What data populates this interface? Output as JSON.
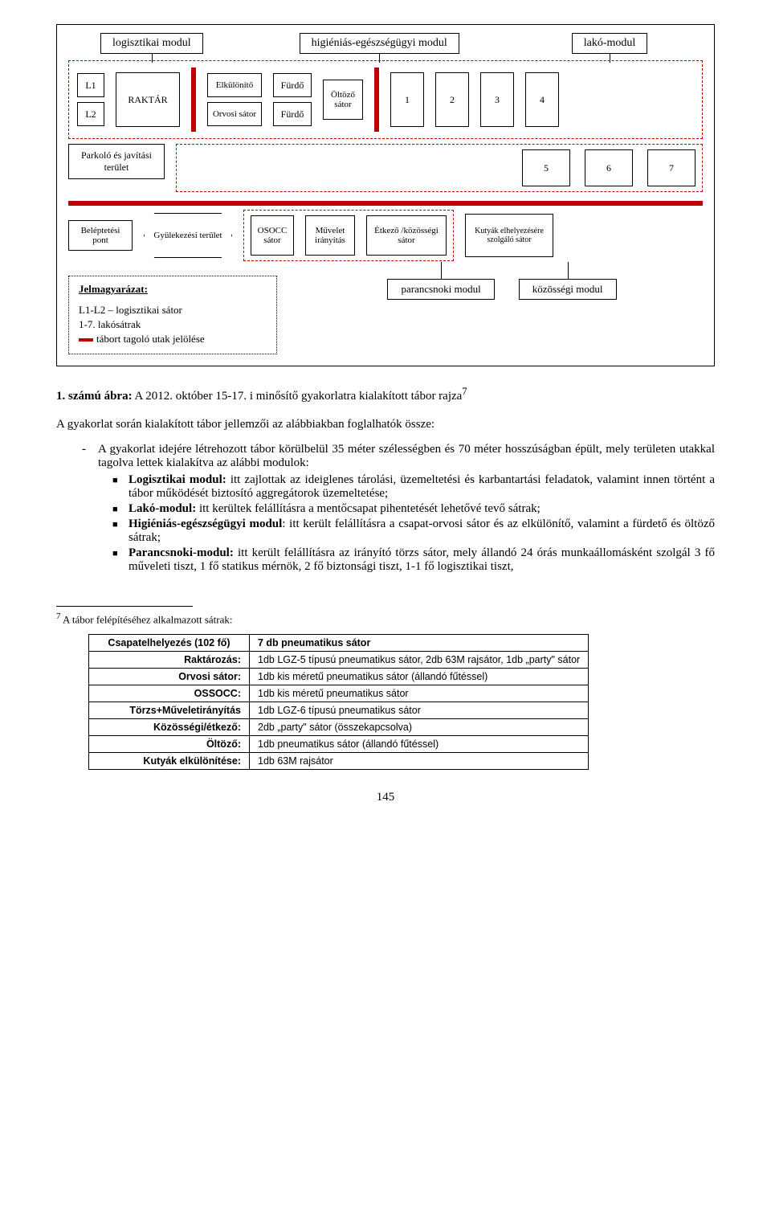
{
  "diagram": {
    "top_labels": {
      "log": "logisztikai modul",
      "hig": "higiéniás-egészségügyi modul",
      "lako": "lakó-modul"
    },
    "row1": {
      "L1": "L1",
      "L2": "L2",
      "raktar": "RAKTÁR",
      "elkulonito": "Elkülönítő",
      "orvosi": "Orvosi sátor",
      "furdo": "Fürdő",
      "oltozo": "Öltöző sátor",
      "n1": "1",
      "n2": "2",
      "n3": "3",
      "n4": "4"
    },
    "row2": {
      "parkolo": "Parkoló és javítási terület",
      "n5": "5",
      "n6": "6",
      "n7": "7"
    },
    "row3": {
      "belep": "Beléptetési pont",
      "gyulek": "Gyülekezési terület",
      "osocc": "OSOCC sátor",
      "muvelet": "Művelet irányítás",
      "etkezo": "Étkező /közösségi sátor",
      "kutyak": "Kutyák elhelyezésére szolgáló sátor"
    },
    "row4": {
      "parancs": "parancsnoki modul",
      "kozoss": "közösségi modul"
    },
    "legend": {
      "title": "Jelmagyarázat:",
      "l1l2": "L1-L2 – logisztikai sátor",
      "lako": "1-7. lakósátrak",
      "utak": "tábort tagoló utak jelölése"
    }
  },
  "caption_bold": "1. számú ábra:",
  "caption_rest": " A 2012. október 15-17. i minősítő gyakorlatra kialakított tábor rajza",
  "caption_sup": "7",
  "intro": "A gyakorlat során kialakított tábor jellemzői az alábbiakban foglalhatók össze:",
  "dash1_lead": "A gyakorlat idejére létrehozott tábor körülbelül 35 méter szélességben és 70 méter hosszúságban épült, mely területen utakkal tagolva lettek kialakítva az alábbi modulok:",
  "sq": {
    "log_b": "Logisztikai modul:",
    "log_t": " itt zajlottak az ideiglenes tárolási, üzemeltetési és karbantartási feladatok, valamint innen történt a tábor működését biztosító aggregátorok üzemeltetése;",
    "lako_b": "Lakó-modul:",
    "lako_t": " itt kerültek felállításra a mentőcsapat pihentetését lehetővé tevő sátrak;",
    "hig_b": "Higiéniás-egészségügyi modul",
    "hig_t": ": itt került felállításra a csapat-orvosi sátor és az elkülönítő, valamint a fürdető és öltöző sátrak;",
    "par_b": "Parancsnoki-modul:",
    "par_t": " itt került felállításra az irányító törzs sátor, mely állandó 24 órás munkaállomásként szolgál 3 fő műveleti tiszt, 1 fő statikus mérnök, 2 fő biztonsági tiszt, 1-1 fő logisztikai tiszt,"
  },
  "footnote_lead": "7",
  "footnote_text": " A tábor felépítéséhez alkalmazott sátrak:",
  "table": {
    "rows": [
      [
        "Csapatelhelyezés (102 fő)",
        "7 db pneumatikus sátor"
      ],
      [
        "Raktározás:",
        "1db LGZ-5 típusú pneumatikus sátor, 2db 63M rajsátor, 1db „party\" sátor"
      ],
      [
        "Orvosi sátor:",
        "1db kis méretű pneumatikus sátor (állandó fűtéssel)"
      ],
      [
        "OSSOCC:",
        "1db kis méretű pneumatikus sátor"
      ],
      [
        "Törzs+Műveletirányítás",
        "1db LGZ-6 típusú pneumatikus sátor"
      ],
      [
        "Közösségi/étkező:",
        "2db „party\" sátor (összekapcsolva)"
      ],
      [
        "Öltöző:",
        "1db pneumatikus sátor (állandó fűtéssel)"
      ],
      [
        "Kutyák elkülönítése:",
        "1db 63M rajsátor"
      ]
    ]
  },
  "page_num": "145",
  "colors": {
    "red": "#c00000",
    "dashed": "#b00000"
  }
}
